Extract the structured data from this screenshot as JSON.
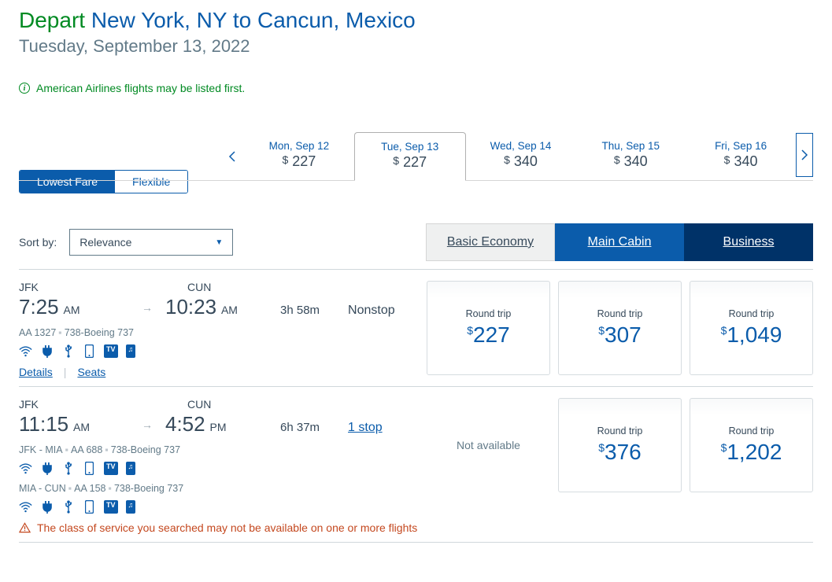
{
  "header": {
    "depart_word": "Depart",
    "route": "New York, NY to Cancun, Mexico",
    "date_line": "Tuesday, September 13, 2022"
  },
  "notice": {
    "text": "American Airlines flights may be listed first."
  },
  "date_strip": {
    "items": [
      {
        "label": "Mon, Sep 12",
        "price": "227"
      },
      {
        "label": "Tue, Sep 13",
        "price": "227"
      },
      {
        "label": "Wed, Sep 14",
        "price": "340"
      },
      {
        "label": "Thu, Sep 15",
        "price": "340"
      },
      {
        "label": "Fri, Sep 16",
        "price": "340"
      }
    ]
  },
  "toggle": {
    "lowest": "Lowest Fare",
    "flexible": "Flexible"
  },
  "sort": {
    "label": "Sort by:",
    "value": "Relevance"
  },
  "cabins": {
    "basic": "Basic Economy",
    "main": "Main Cabin",
    "business": "Business"
  },
  "flights": [
    {
      "dep_code": "JFK",
      "arr_code": "CUN",
      "dep_time": "7:25",
      "dep_ampm": "AM",
      "arr_time": "10:23",
      "arr_ampm": "AM",
      "duration": "3h  58m",
      "stops": "Nonstop",
      "stops_link": false,
      "segments": [
        {
          "route": "",
          "flight_no": "AA 1327",
          "aircraft": "738-Boeing 737"
        }
      ],
      "prices": {
        "basic": "227",
        "main": "307",
        "business": "1,049"
      },
      "show_links": true
    },
    {
      "dep_code": "JFK",
      "arr_code": "CUN",
      "dep_time": "11:15",
      "dep_ampm": "AM",
      "arr_time": "4:52",
      "arr_ampm": "PM",
      "duration": "6h  37m",
      "stops": "1 stop",
      "stops_link": true,
      "segments": [
        {
          "route": "JFK - MIA",
          "flight_no": "AA 688",
          "aircraft": "738-Boeing 737"
        },
        {
          "route": "MIA - CUN",
          "flight_no": "AA 158",
          "aircraft": "738-Boeing 737"
        }
      ],
      "prices": {
        "basic": null,
        "main": "376",
        "business": "1,202"
      },
      "show_links": false,
      "warning": "The class of service you searched may not be available on one or more flights"
    }
  ],
  "labels": {
    "round_trip": "Round trip",
    "not_available": "Not available",
    "details": "Details",
    "seats": "Seats"
  },
  "colors": {
    "primary_blue": "#0b5cab",
    "dark_blue": "#003268",
    "green": "#008a22",
    "text": "#36495a",
    "muted": "#627a88",
    "orange": "#c4481f"
  }
}
